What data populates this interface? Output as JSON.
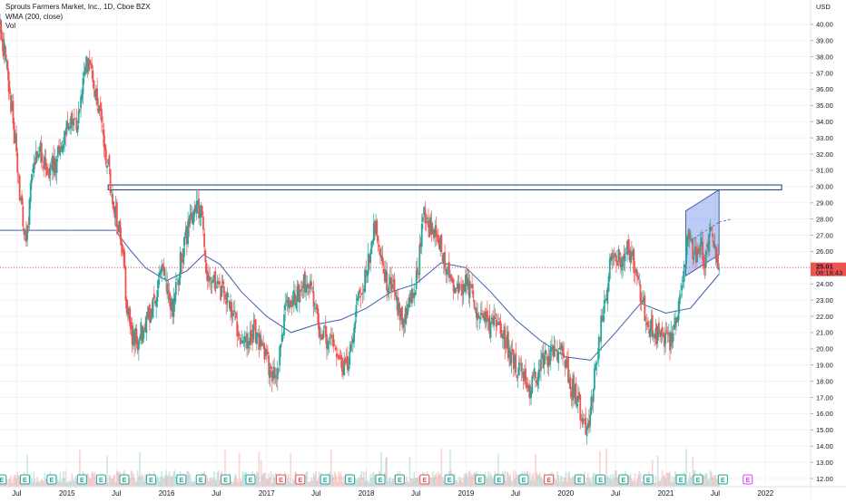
{
  "legend": {
    "symbol": "Sprouts Farmers Market, Inc., 1D, Cboe BZX",
    "indicator": "WMA (200, close)",
    "volume": "Vol"
  },
  "price_scale": {
    "currency": "USD",
    "last_price": "25.01",
    "countdown": "06:18:43"
  },
  "colors": {
    "up": "#26a69a",
    "down": "#ef5350",
    "wma": "#3f5fa8",
    "channel_fill": "#6c8ee8",
    "last_price": "#ef5350",
    "earnings_normal": "#26a69a",
    "earnings_miss": "#ef5350",
    "earnings_upcoming": "#e040fb"
  },
  "chart_data": {
    "type": "candlestick",
    "title": "Sprouts Farmers Market, Inc., 1D, Cboe BZX",
    "ylim": [
      11.5,
      41.5
    ],
    "yticks": [
      12,
      13,
      14,
      15,
      16,
      17,
      18,
      19,
      20,
      21,
      22,
      23,
      24,
      25,
      26,
      27,
      28,
      29,
      30,
      31,
      32,
      33,
      34,
      35,
      36,
      37,
      38,
      39,
      40
    ],
    "xlim": [
      "2014-05-01",
      "2022-06-15"
    ],
    "xticks": [
      {
        "date": "2014-07-01",
        "label": "Jul"
      },
      {
        "date": "2015-01-01",
        "label": "2015"
      },
      {
        "date": "2015-07-01",
        "label": "Jul"
      },
      {
        "date": "2016-01-01",
        "label": "2016"
      },
      {
        "date": "2016-07-01",
        "label": "Jul"
      },
      {
        "date": "2017-01-01",
        "label": "2017"
      },
      {
        "date": "2017-07-01",
        "label": "Jul"
      },
      {
        "date": "2018-01-01",
        "label": "2018"
      },
      {
        "date": "2018-07-01",
        "label": "Jul"
      },
      {
        "date": "2019-01-01",
        "label": "2019"
      },
      {
        "date": "2019-07-01",
        "label": "Jul"
      },
      {
        "date": "2020-01-01",
        "label": "2020"
      },
      {
        "date": "2020-07-01",
        "label": "Jul"
      },
      {
        "date": "2021-01-01",
        "label": "2021"
      },
      {
        "date": "2021-07-01",
        "label": "Jul"
      },
      {
        "date": "2022-01-01",
        "label": "2022"
      }
    ],
    "price_path": [
      [
        "2014-05-01",
        40.0
      ],
      [
        "2014-05-15",
        38.5
      ],
      [
        "2014-06-15",
        34.5
      ],
      [
        "2014-07-01",
        31.5
      ],
      [
        "2014-07-15",
        29.0
      ],
      [
        "2014-08-05",
        26.5
      ],
      [
        "2014-08-25",
        30.5
      ],
      [
        "2014-09-20",
        32.5
      ],
      [
        "2014-10-20",
        31.0
      ],
      [
        "2014-11-20",
        31.5
      ],
      [
        "2014-12-20",
        33.0
      ],
      [
        "2015-01-15",
        34.5
      ],
      [
        "2015-02-10",
        34.0
      ],
      [
        "2015-03-05",
        37.0
      ],
      [
        "2015-03-25",
        38.0
      ],
      [
        "2015-04-20",
        35.5
      ],
      [
        "2015-05-20",
        32.5
      ],
      [
        "2015-06-15",
        29.5
      ],
      [
        "2015-07-10",
        27.5
      ],
      [
        "2015-07-25",
        26.0
      ],
      [
        "2015-08-05",
        23.0
      ],
      [
        "2015-08-25",
        21.0
      ],
      [
        "2015-09-15",
        20.5
      ],
      [
        "2015-10-15",
        21.5
      ],
      [
        "2015-11-15",
        23.0
      ],
      [
        "2015-12-15",
        25.0
      ],
      [
        "2016-01-10",
        23.0
      ],
      [
        "2016-01-25",
        22.5
      ],
      [
        "2016-02-20",
        25.5
      ],
      [
        "2016-03-20",
        27.5
      ],
      [
        "2016-04-15",
        29.0
      ],
      [
        "2016-05-10",
        28.5
      ],
      [
        "2016-05-25",
        24.5
      ],
      [
        "2016-06-20",
        24.0
      ],
      [
        "2016-07-20",
        23.5
      ],
      [
        "2016-08-20",
        23.0
      ],
      [
        "2016-09-20",
        21.0
      ],
      [
        "2016-10-25",
        20.0
      ],
      [
        "2016-11-15",
        21.0
      ],
      [
        "2016-12-15",
        20.0
      ],
      [
        "2017-01-10",
        19.0
      ],
      [
        "2017-01-25",
        18.0
      ],
      [
        "2017-02-15",
        19.5
      ],
      [
        "2017-03-10",
        22.5
      ],
      [
        "2017-04-10",
        23.0
      ],
      [
        "2017-05-15",
        24.0
      ],
      [
        "2017-06-15",
        23.5
      ],
      [
        "2017-07-15",
        21.0
      ],
      [
        "2017-08-15",
        20.5
      ],
      [
        "2017-09-20",
        19.5
      ],
      [
        "2017-10-25",
        18.5
      ],
      [
        "2017-11-10",
        21.0
      ],
      [
        "2017-12-10",
        23.5
      ],
      [
        "2018-01-15",
        26.0
      ],
      [
        "2018-02-05",
        28.0
      ],
      [
        "2018-02-25",
        26.0
      ],
      [
        "2018-03-15",
        24.0
      ],
      [
        "2018-04-10",
        23.5
      ],
      [
        "2018-05-10",
        22.0
      ],
      [
        "2018-06-10",
        22.5
      ],
      [
        "2018-07-10",
        25.0
      ],
      [
        "2018-08-01",
        28.5
      ],
      [
        "2018-08-20",
        27.5
      ],
      [
        "2018-09-20",
        27.0
      ],
      [
        "2018-10-10",
        25.5
      ],
      [
        "2018-11-01",
        24.5
      ],
      [
        "2018-12-01",
        23.5
      ],
      [
        "2019-01-05",
        24.0
      ],
      [
        "2019-01-25",
        23.0
      ],
      [
        "2019-02-25",
        22.0
      ],
      [
        "2019-03-25",
        21.5
      ],
      [
        "2019-04-25",
        21.5
      ],
      [
        "2019-05-25",
        20.5
      ],
      [
        "2019-06-25",
        19.0
      ],
      [
        "2019-07-25",
        18.5
      ],
      [
        "2019-08-25",
        17.5
      ],
      [
        "2019-09-25",
        19.0
      ],
      [
        "2019-10-25",
        19.5
      ],
      [
        "2019-11-25",
        20.0
      ],
      [
        "2019-12-25",
        19.5
      ],
      [
        "2020-01-25",
        17.5
      ],
      [
        "2020-02-15",
        16.5
      ],
      [
        "2020-03-05",
        15.5
      ],
      [
        "2020-03-20",
        14.5
      ],
      [
        "2020-04-10",
        17.5
      ],
      [
        "2020-04-30",
        20.5
      ],
      [
        "2020-05-20",
        22.5
      ],
      [
        "2020-06-10",
        25.0
      ],
      [
        "2020-06-30",
        26.0
      ],
      [
        "2020-07-20",
        25.5
      ],
      [
        "2020-08-10",
        26.5
      ],
      [
        "2020-08-30",
        25.5
      ],
      [
        "2020-09-25",
        24.0
      ],
      [
        "2020-10-25",
        21.5
      ],
      [
        "2020-11-25",
        21.0
      ],
      [
        "2020-12-25",
        20.5
      ],
      [
        "2021-01-25",
        20.5
      ],
      [
        "2021-02-15",
        22.0
      ],
      [
        "2021-03-05",
        24.5
      ],
      [
        "2021-03-25",
        27.0
      ],
      [
        "2021-04-15",
        25.5
      ],
      [
        "2021-05-05",
        26.5
      ],
      [
        "2021-05-25",
        25.5
      ],
      [
        "2021-06-15",
        27.5
      ],
      [
        "2021-07-05",
        26.0
      ],
      [
        "2021-07-15",
        25.0
      ]
    ],
    "wma_path": [
      [
        "2014-05-01",
        27.3
      ],
      [
        "2015-07-01",
        27.2
      ],
      [
        "2015-08-25",
        26.0
      ],
      [
        "2015-10-15",
        25.0
      ],
      [
        "2016-01-01",
        24.2
      ],
      [
        "2016-03-15",
        24.8
      ],
      [
        "2016-05-15",
        25.8
      ],
      [
        "2016-07-15",
        25.2
      ],
      [
        "2016-10-01",
        23.5
      ],
      [
        "2017-01-01",
        22.0
      ],
      [
        "2017-04-01",
        21.0
      ],
      [
        "2017-07-01",
        21.5
      ],
      [
        "2017-10-01",
        21.8
      ],
      [
        "2018-01-01",
        22.5
      ],
      [
        "2018-04-01",
        23.5
      ],
      [
        "2018-07-01",
        24.0
      ],
      [
        "2018-10-01",
        25.3
      ],
      [
        "2019-01-01",
        25.0
      ],
      [
        "2019-04-01",
        23.5
      ],
      [
        "2019-07-01",
        21.8
      ],
      [
        "2019-10-01",
        20.5
      ],
      [
        "2020-01-01",
        19.5
      ],
      [
        "2020-04-01",
        19.3
      ],
      [
        "2020-07-01",
        21.0
      ],
      [
        "2020-10-01",
        22.8
      ],
      [
        "2021-01-01",
        22.2
      ],
      [
        "2021-04-01",
        22.5
      ],
      [
        "2021-07-15",
        24.6
      ]
    ],
    "horizontal_line": {
      "from": "2014-05-01",
      "to": "2015-07-01",
      "value": 27.3
    },
    "resistance_zone": {
      "from": "2015-06-01",
      "to": "2022-03-01",
      "low": 29.8,
      "high": 30.1
    },
    "channel": {
      "start": "2021-03-15",
      "end": "2021-07-15",
      "upper": [
        28.5,
        29.8
      ],
      "lower": [
        24.5,
        25.8
      ]
    },
    "earnings": [
      {
        "date": "2014-05-07",
        "kind": "normal"
      },
      {
        "date": "2014-07-31",
        "kind": "normal"
      },
      {
        "date": "2014-11-06",
        "kind": "normal"
      },
      {
        "date": "2015-02-25",
        "kind": "normal"
      },
      {
        "date": "2015-05-06",
        "kind": "normal"
      },
      {
        "date": "2015-07-30",
        "kind": "normal"
      },
      {
        "date": "2015-11-05",
        "kind": "normal"
      },
      {
        "date": "2016-02-24",
        "kind": "normal"
      },
      {
        "date": "2016-05-05",
        "kind": "normal"
      },
      {
        "date": "2016-08-04",
        "kind": "normal"
      },
      {
        "date": "2016-11-03",
        "kind": "normal"
      },
      {
        "date": "2017-02-22",
        "kind": "miss"
      },
      {
        "date": "2017-05-04",
        "kind": "miss"
      },
      {
        "date": "2017-08-03",
        "kind": "normal"
      },
      {
        "date": "2017-11-02",
        "kind": "normal"
      },
      {
        "date": "2018-02-21",
        "kind": "normal"
      },
      {
        "date": "2018-05-03",
        "kind": "normal"
      },
      {
        "date": "2018-08-02",
        "kind": "miss"
      },
      {
        "date": "2018-11-01",
        "kind": "normal"
      },
      {
        "date": "2019-02-21",
        "kind": "normal"
      },
      {
        "date": "2019-05-02",
        "kind": "normal"
      },
      {
        "date": "2019-07-31",
        "kind": "normal"
      },
      {
        "date": "2019-10-31",
        "kind": "miss"
      },
      {
        "date": "2020-02-20",
        "kind": "normal"
      },
      {
        "date": "2020-05-07",
        "kind": "normal"
      },
      {
        "date": "2020-07-30",
        "kind": "normal"
      },
      {
        "date": "2020-10-29",
        "kind": "normal"
      },
      {
        "date": "2021-02-25",
        "kind": "normal"
      },
      {
        "date": "2021-04-29",
        "kind": "normal"
      },
      {
        "date": "2021-07-29",
        "kind": "normal"
      },
      {
        "date": "2021-10-28",
        "kind": "upcoming"
      }
    ],
    "earnings_label": "E"
  }
}
